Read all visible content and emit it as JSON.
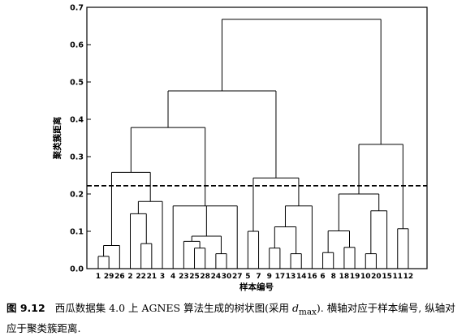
{
  "chart_data": {
    "type": "dendrogram",
    "xlabel": "样本编号",
    "ylabel": "聚类簇距离",
    "ylim": [
      0,
      0.7
    ],
    "yticks": [
      0,
      0.1,
      0.2,
      0.3,
      0.4,
      0.5,
      0.6,
      0.7
    ],
    "ytick_labels": [
      "0.0",
      "0.1",
      "0.2",
      "0.3",
      "0.4",
      "0.5",
      "0.6",
      "0.7"
    ],
    "leaf_order": [
      1,
      29,
      26,
      2,
      22,
      21,
      3,
      4,
      23,
      25,
      28,
      24,
      30,
      27,
      5,
      7,
      9,
      17,
      13,
      14,
      16,
      6,
      8,
      18,
      19,
      10,
      20,
      15,
      11,
      12
    ],
    "cut_height": 0.222,
    "tree": {
      "h": 0.668,
      "c": [
        {
          "h": 0.476,
          "c": [
            {
              "h": 0.378,
              "c": [
                {
                  "h": 0.258,
                  "c": [
                    {
                      "h": 0.062,
                      "c": [
                        {
                          "h": 0.033,
                          "c": [
                            1,
                            29
                          ]
                        },
                        26
                      ]
                    },
                    {
                      "h": 0.18,
                      "c": [
                        {
                          "h": 0.147,
                          "c": [
                            2,
                            {
                              "h": 0.067,
                              "c": [
                                22,
                                21
                              ]
                            }
                          ]
                        },
                        3
                      ]
                    }
                  ]
                },
                {
                  "h": 0.168,
                  "c": [
                    4,
                    {
                      "h": 0.087,
                      "c": [
                        {
                          "h": 0.073,
                          "c": [
                            23,
                            {
                              "h": 0.055,
                              "c": [
                                25,
                                28
                              ]
                            }
                          ]
                        },
                        {
                          "h": 0.04,
                          "c": [
                            24,
                            30
                          ]
                        }
                      ]
                    },
                    27
                  ]
                }
              ]
            },
            {
              "h": 0.243,
              "c": [
                {
                  "h": 0.1,
                  "c": [
                    5,
                    7
                  ]
                },
                {
                  "h": 0.168,
                  "c": [
                    {
                      "h": 0.112,
                      "c": [
                        {
                          "h": 0.055,
                          "c": [
                            9,
                            17
                          ]
                        },
                        {
                          "h": 0.04,
                          "c": [
                            13,
                            14
                          ]
                        }
                      ]
                    },
                    16
                  ]
                }
              ]
            }
          ]
        },
        {
          "h": 0.333,
          "c": [
            {
              "h": 0.2,
              "c": [
                {
                  "h": 0.101,
                  "c": [
                    {
                      "h": 0.043,
                      "c": [
                        6,
                        8
                      ]
                    },
                    {
                      "h": 0.057,
                      "c": [
                        18,
                        19
                      ]
                    }
                  ]
                },
                {
                  "h": 0.155,
                  "c": [
                    {
                      "h": 0.04,
                      "c": [
                        10,
                        20
                      ]
                    },
                    15
                  ]
                }
              ]
            },
            {
              "h": 0.107,
              "c": [
                11,
                12
              ]
            }
          ]
        }
      ]
    }
  },
  "caption": {
    "figure_number": "图 9.12",
    "text_before": "西瓜数据集 4.0 上 AGNES 算法生成的树状图(采用 ",
    "dmax": "d",
    "dmax_sub": "max",
    "text_after": "). 横轴对应于样本编号, 纵轴对应于聚类簇距离."
  }
}
